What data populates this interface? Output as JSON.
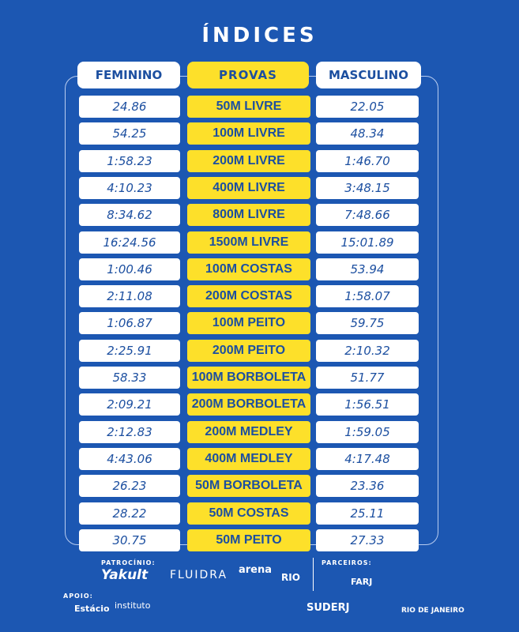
{
  "title": "ÍNDICES",
  "table": {
    "headers": [
      "FEMININO",
      "PROVAS",
      "MASCULINO"
    ],
    "rows": [
      [
        "24.86",
        "50M LIVRE",
        "22.05"
      ],
      [
        "54.25",
        "100M LIVRE",
        "48.34"
      ],
      [
        "1:58.23",
        "200M LIVRE",
        "1:46.70"
      ],
      [
        "4:10.23",
        "400M LIVRE",
        "3:48.15"
      ],
      [
        "8:34.62",
        "800M LIVRE",
        "7:48.66"
      ],
      [
        "16:24.56",
        "1500M LIVRE",
        "15:01.89"
      ],
      [
        "1:00.46",
        "100M COSTAS",
        "53.94"
      ],
      [
        "2:11.08",
        "200M COSTAS",
        "1:58.07"
      ],
      [
        "1:06.87",
        "100M PEITO",
        "59.75"
      ],
      [
        "2:25.91",
        "200M PEITO",
        "2:10.32"
      ],
      [
        "58.33",
        "100M BORBOLETA",
        "51.77"
      ],
      [
        "2:09.21",
        "200M BORBOLETA",
        "1:56.51"
      ],
      [
        "2:12.83",
        "200M MEDLEY",
        "1:59.05"
      ],
      [
        "4:43.06",
        "400M MEDLEY",
        "4:17.48"
      ],
      [
        "26.23",
        "50M BORBOLETA",
        "23.36"
      ],
      [
        "28.22",
        "50M COSTAS",
        "25.11"
      ],
      [
        "30.75",
        "50M PEITO",
        "27.33"
      ]
    ]
  },
  "footer": {
    "patrocinio_label": "PATROCÍNIO:",
    "sponsors": [
      "Yakult",
      "FLUIDRA",
      "arena",
      "RIO"
    ],
    "parceiros_label": "PARCEIROS:",
    "partners": [
      "FARJ"
    ],
    "apoio_label": "APOIO:",
    "supporters": [
      "Estácio",
      "instituto",
      "SUDERJ",
      "RIO DE JANEIRO"
    ]
  }
}
